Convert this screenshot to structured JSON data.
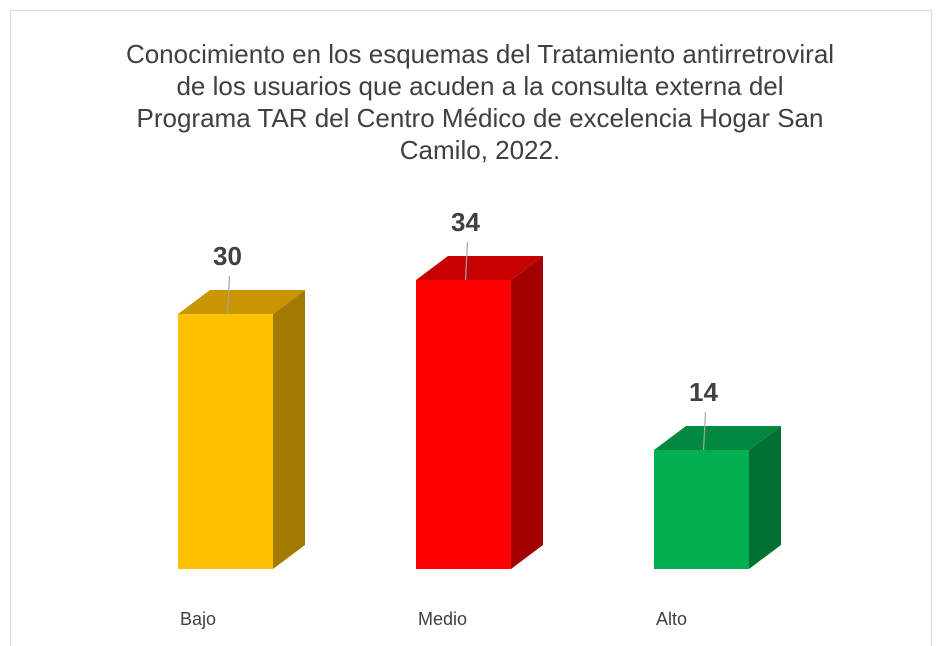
{
  "chart_data": {
    "type": "bar3d",
    "title": "Conocimiento en los esquemas del Tratamiento antirretroviral de los usuarios que acuden a la consulta externa del Programa TAR del Centro Médico de excelencia Hogar San Camilo, 2022.",
    "categories": [
      "Bajo",
      "Medio",
      "Alto"
    ],
    "values": [
      30,
      34,
      14
    ],
    "colors": [
      "#ffc000",
      "#ff0000",
      "#00b050"
    ]
  }
}
